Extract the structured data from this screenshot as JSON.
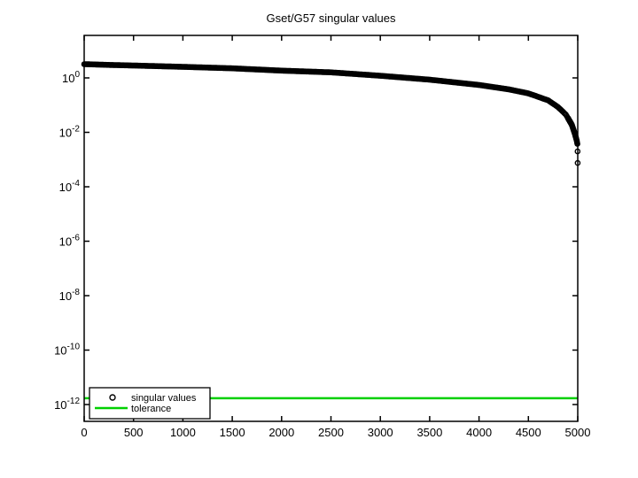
{
  "window": {
    "background": "#ffffff"
  },
  "chart_data": {
    "type": "scatter",
    "title": "Gset/G57 singular values",
    "xlabel": "",
    "ylabel": "",
    "x_ticks": [
      0,
      500,
      1000,
      1500,
      2000,
      2500,
      3000,
      3500,
      4000,
      4500,
      5000
    ],
    "xlim": [
      0,
      5000
    ],
    "y_scale": "log10",
    "y_tick_exponents": [
      0,
      -2,
      -4,
      -6,
      -8,
      -10,
      -12
    ],
    "ylim_log10": [
      -12.6,
      1.56
    ],
    "grid": false,
    "box": true,
    "mirrored_ticks": true,
    "n_singular_values": 5000,
    "colors": {
      "axis": "#000000",
      "marker": "#000000",
      "tolerance_line": "#00d000",
      "legend_background": "#ffffff"
    },
    "series": [
      {
        "name": "singular values",
        "type": "scatter",
        "marker": "open-circle",
        "color": "#000000",
        "anchors_index_value": [
          [
            0,
            3.2
          ],
          [
            250,
            3.0
          ],
          [
            500,
            2.85
          ],
          [
            1000,
            2.55
          ],
          [
            1500,
            2.25
          ],
          [
            2000,
            1.85
          ],
          [
            2500,
            1.6
          ],
          [
            3000,
            1.2
          ],
          [
            3500,
            0.86
          ],
          [
            4000,
            0.55
          ],
          [
            4300,
            0.38
          ],
          [
            4500,
            0.27
          ],
          [
            4700,
            0.15
          ],
          [
            4800,
            0.085
          ],
          [
            4880,
            0.045
          ],
          [
            4940,
            0.019
          ],
          [
            4970,
            0.009
          ],
          [
            4990,
            0.005
          ],
          [
            4997,
            0.0036
          ],
          [
            4998,
            0.002
          ],
          [
            4999,
            0.00075
          ]
        ]
      },
      {
        "name": "tolerance",
        "type": "hline",
        "color": "#00d000",
        "value": 1.7e-12
      }
    ],
    "legend": {
      "position": "southwest",
      "entries": [
        {
          "label": "singular values",
          "swatch": "open-circle-marker"
        },
        {
          "label": "tolerance",
          "swatch": "green-line"
        }
      ]
    }
  }
}
